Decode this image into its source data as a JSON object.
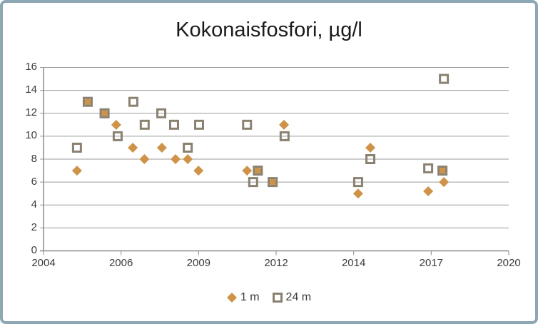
{
  "title": "Kokonaisfosfori, µg/l",
  "colors": {
    "frame_border": "#8DA7B5",
    "gridline": "#9B9B9B",
    "axis": "#8C8C8C",
    "series_1m": "#CE9348",
    "series_24m": "#8A8170",
    "text": "#3b3b3b"
  },
  "legend": {
    "items": [
      {
        "label": "1 m",
        "marker": "diamond-icon"
      },
      {
        "label": "24 m",
        "marker": "open-square-icon"
      }
    ]
  },
  "chart_data": {
    "type": "scatter",
    "title": "Kokonaisfosfori, µg/l",
    "xlabel": "",
    "ylabel": "",
    "xlim": [
      2004,
      2020
    ],
    "ylim": [
      0,
      16
    ],
    "grid": "horizontal",
    "legend_position": "bottom",
    "y_ticks": [
      0,
      2,
      4,
      6,
      8,
      10,
      12,
      14,
      16
    ],
    "x_ticks": [
      {
        "value": 2004,
        "label": "2004"
      },
      {
        "value": 2006.6667,
        "label": "2006"
      },
      {
        "value": 2009.3333,
        "label": "2009"
      },
      {
        "value": 2012,
        "label": "2012"
      },
      {
        "value": 2014.6667,
        "label": "2014"
      },
      {
        "value": 2017.3333,
        "label": "2017"
      },
      {
        "value": 2020,
        "label": "2020"
      }
    ],
    "series": [
      {
        "name": "1 m",
        "marker": "diamond",
        "color": "#CE9348",
        "points": [
          [
            2005.15,
            7
          ],
          [
            2005.52,
            13
          ],
          [
            2006.1,
            12
          ],
          [
            2006.5,
            11
          ],
          [
            2007.07,
            9
          ],
          [
            2007.47,
            8
          ],
          [
            2008.07,
            9
          ],
          [
            2008.54,
            8
          ],
          [
            2008.96,
            8
          ],
          [
            2009.33,
            7
          ],
          [
            2011.0,
            7
          ],
          [
            2011.37,
            7
          ],
          [
            2011.88,
            6
          ],
          [
            2012.27,
            11
          ],
          [
            2014.82,
            5
          ],
          [
            2015.24,
            9
          ],
          [
            2017.23,
            5.2
          ],
          [
            2017.72,
            7
          ],
          [
            2017.77,
            6
          ]
        ]
      },
      {
        "name": "24 m",
        "marker": "open-square",
        "color": "#8A8170",
        "points": [
          [
            2005.15,
            9
          ],
          [
            2005.52,
            13
          ],
          [
            2006.1,
            12
          ],
          [
            2006.55,
            10
          ],
          [
            2007.09,
            13
          ],
          [
            2007.48,
            11
          ],
          [
            2008.05,
            12
          ],
          [
            2008.49,
            11
          ],
          [
            2008.96,
            9
          ],
          [
            2009.35,
            11
          ],
          [
            2011.0,
            11
          ],
          [
            2011.21,
            6
          ],
          [
            2011.37,
            7
          ],
          [
            2011.88,
            6
          ],
          [
            2012.29,
            10
          ],
          [
            2014.82,
            6
          ],
          [
            2015.24,
            8
          ],
          [
            2017.23,
            7.2
          ],
          [
            2017.72,
            7
          ],
          [
            2017.77,
            15
          ]
        ]
      }
    ]
  }
}
